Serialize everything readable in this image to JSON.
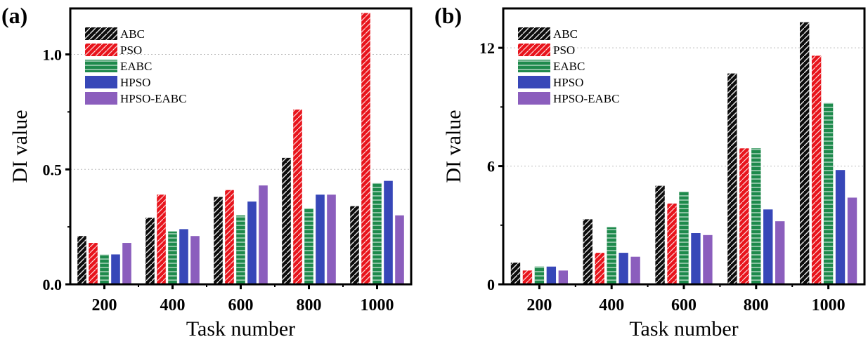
{
  "colors": {
    "ABC": "#0d0d0d",
    "PSO": "#e8141c",
    "EABC": "#1e8a4c",
    "HPSO": "#3747b8",
    "HPSO-EABC": "#8b5ebd"
  },
  "chart_data": [
    {
      "type": "bar",
      "panel_label": "(a)",
      "categories": [
        "200",
        "400",
        "600",
        "800",
        "1000"
      ],
      "xlabel": "Task number",
      "ylabel": "DI value",
      "ylim": [
        0,
        1.2
      ],
      "yticks": [
        "0.0",
        "0.5",
        "1.0"
      ],
      "ytick_values": [
        0,
        0.5,
        1.0
      ],
      "legend": [
        "ABC",
        "PSO",
        "EABC",
        "HPSO",
        "HPSO-EABC"
      ],
      "legend_position": "top-left",
      "series": [
        {
          "name": "ABC",
          "values": [
            0.21,
            0.29,
            0.38,
            0.55,
            0.34
          ]
        },
        {
          "name": "PSO",
          "values": [
            0.18,
            0.39,
            0.41,
            0.76,
            1.18
          ]
        },
        {
          "name": "EABC",
          "values": [
            0.13,
            0.23,
            0.3,
            0.33,
            0.44
          ]
        },
        {
          "name": "HPSO",
          "values": [
            0.13,
            0.24,
            0.36,
            0.39,
            0.45
          ]
        },
        {
          "name": "HPSO-EABC",
          "values": [
            0.18,
            0.21,
            0.43,
            0.39,
            0.3
          ]
        }
      ]
    },
    {
      "type": "bar",
      "panel_label": "(b)",
      "categories": [
        "200",
        "400",
        "600",
        "800",
        "1000"
      ],
      "xlabel": "Task number",
      "ylabel": "DI value",
      "ylim": [
        0,
        14
      ],
      "yticks": [
        "0",
        "6",
        "12"
      ],
      "ytick_values": [
        0,
        6,
        12
      ],
      "legend": [
        "ABC",
        "PSO",
        "EABC",
        "HPSO",
        "HPSO-EABC"
      ],
      "legend_position": "top-left",
      "series": [
        {
          "name": "ABC",
          "values": [
            1.1,
            3.3,
            5.0,
            10.7,
            13.3
          ]
        },
        {
          "name": "PSO",
          "values": [
            0.7,
            1.6,
            4.1,
            6.9,
            11.6
          ]
        },
        {
          "name": "EABC",
          "values": [
            0.9,
            2.9,
            4.7,
            6.9,
            9.2
          ]
        },
        {
          "name": "HPSO",
          "values": [
            0.9,
            1.6,
            2.6,
            3.8,
            5.8
          ]
        },
        {
          "name": "HPSO-EABC",
          "values": [
            0.7,
            1.4,
            2.5,
            3.2,
            4.4
          ]
        }
      ]
    }
  ]
}
